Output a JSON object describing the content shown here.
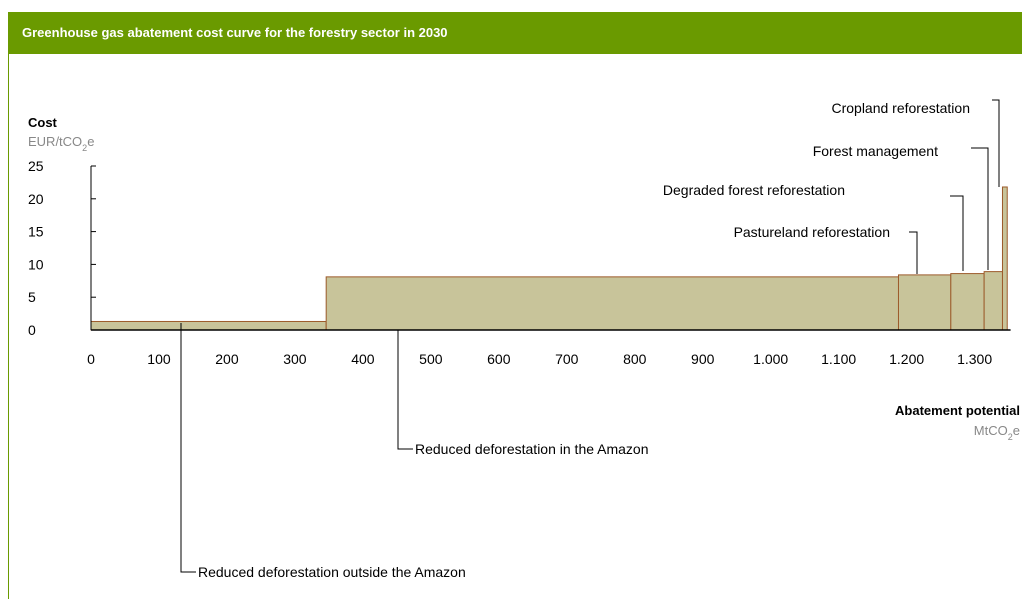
{
  "header": {
    "title": "Greenhouse gas abatement cost curve for the forestry sector in 2030"
  },
  "colors": {
    "header_bg": "#6a9a00",
    "bar_fill": "#c8c49a",
    "bar_stroke": "#9c5a2a",
    "axis": "#000000",
    "unit_gray": "#888888"
  },
  "chart_data": {
    "type": "bar",
    "variant": "marginal-abatement-cost-curve",
    "y_title": "Cost",
    "y_unit_pre": "EUR/tCO",
    "y_unit_sub": "2",
    "y_unit_post": "e",
    "x_title": "Abatement potential",
    "x_unit_pre": "MtCO",
    "x_unit_sub": "2",
    "x_unit_post": "e",
    "xlim": [
      0,
      1350
    ],
    "ylim": [
      0,
      25
    ],
    "x_ticks": [
      {
        "value": 0,
        "label": "0"
      },
      {
        "value": 100,
        "label": "100"
      },
      {
        "value": 200,
        "label": "200"
      },
      {
        "value": 300,
        "label": "300"
      },
      {
        "value": 400,
        "label": "400"
      },
      {
        "value": 500,
        "label": "500"
      },
      {
        "value": 600,
        "label": "600"
      },
      {
        "value": 700,
        "label": "700"
      },
      {
        "value": 800,
        "label": "800"
      },
      {
        "value": 900,
        "label": "900"
      },
      {
        "value": 1000,
        "label": "1.000"
      },
      {
        "value": 1100,
        "label": "1.100"
      },
      {
        "value": 1200,
        "label": "1.200"
      },
      {
        "value": 1300,
        "label": "1.300"
      }
    ],
    "y_ticks": [
      {
        "value": 0,
        "label": "0"
      },
      {
        "value": 5,
        "label": "5"
      },
      {
        "value": 10,
        "label": "10"
      },
      {
        "value": 15,
        "label": "15"
      },
      {
        "value": 20,
        "label": "20"
      },
      {
        "value": 25,
        "label": "25"
      }
    ],
    "bars": [
      {
        "name": "Reduced deforestation outside the Amazon",
        "x_start": 0,
        "x_end": 346,
        "cost": 1.3
      },
      {
        "name": "Reduced deforestation in the Amazon",
        "x_start": 346,
        "x_end": 1188,
        "cost": 8.1
      },
      {
        "name": "Pastureland reforestation",
        "x_start": 1188,
        "x_end": 1265,
        "cost": 8.4
      },
      {
        "name": "Degraded forest reforestation",
        "x_start": 1265,
        "x_end": 1314,
        "cost": 8.6
      },
      {
        "name": "Forest management",
        "x_start": 1314,
        "x_end": 1341,
        "cost": 8.9
      },
      {
        "name": "Cropland reforestation",
        "x_start": 1341,
        "x_end": 1348,
        "cost": 21.8
      }
    ],
    "grid": false,
    "legend": "none"
  }
}
